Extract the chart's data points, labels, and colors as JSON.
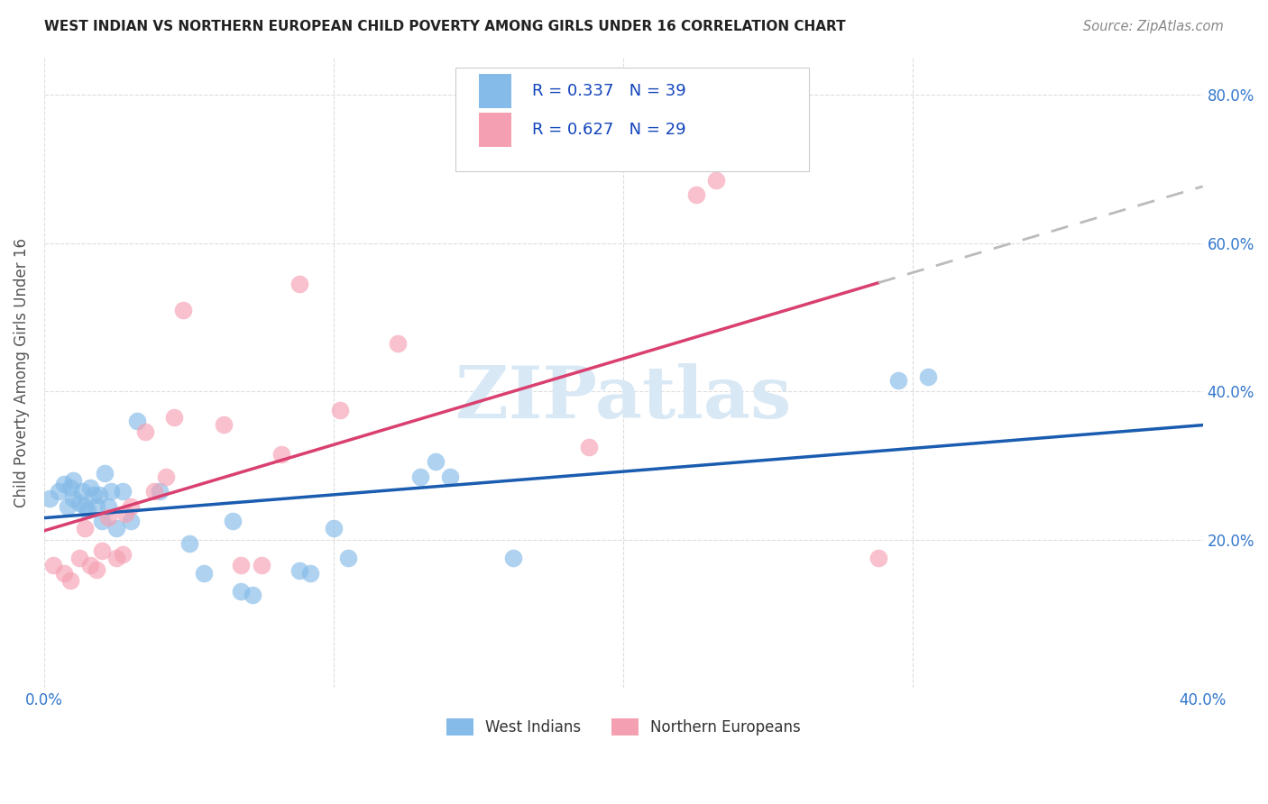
{
  "title": "WEST INDIAN VS NORTHERN EUROPEAN CHILD POVERTY AMONG GIRLS UNDER 16 CORRELATION CHART",
  "source": "Source: ZipAtlas.com",
  "ylabel": "Child Poverty Among Girls Under 16",
  "xlim": [
    0.0,
    0.4
  ],
  "ylim": [
    0.0,
    0.85
  ],
  "west_indians_x": [
    0.002,
    0.005,
    0.007,
    0.008,
    0.009,
    0.01,
    0.01,
    0.012,
    0.013,
    0.014,
    0.015,
    0.016,
    0.017,
    0.018,
    0.019,
    0.02,
    0.021,
    0.022,
    0.023,
    0.025,
    0.027,
    0.03,
    0.032,
    0.04,
    0.05,
    0.055,
    0.065,
    0.068,
    0.072,
    0.088,
    0.092,
    0.1,
    0.105,
    0.13,
    0.135,
    0.14,
    0.162,
    0.295,
    0.305
  ],
  "west_indians_y": [
    0.255,
    0.265,
    0.275,
    0.245,
    0.27,
    0.255,
    0.28,
    0.25,
    0.265,
    0.245,
    0.24,
    0.27,
    0.26,
    0.245,
    0.26,
    0.225,
    0.29,
    0.245,
    0.265,
    0.215,
    0.265,
    0.225,
    0.36,
    0.265,
    0.195,
    0.155,
    0.225,
    0.13,
    0.125,
    0.158,
    0.155,
    0.215,
    0.175,
    0.285,
    0.305,
    0.285,
    0.175,
    0.415,
    0.42
  ],
  "northern_europeans_x": [
    0.003,
    0.007,
    0.009,
    0.012,
    0.014,
    0.016,
    0.018,
    0.02,
    0.022,
    0.025,
    0.027,
    0.028,
    0.03,
    0.035,
    0.038,
    0.042,
    0.045,
    0.048,
    0.062,
    0.068,
    0.075,
    0.082,
    0.088,
    0.102,
    0.122,
    0.188,
    0.225,
    0.232,
    0.288
  ],
  "northern_europeans_y": [
    0.165,
    0.155,
    0.145,
    0.175,
    0.215,
    0.165,
    0.16,
    0.185,
    0.23,
    0.175,
    0.18,
    0.235,
    0.245,
    0.345,
    0.265,
    0.285,
    0.365,
    0.51,
    0.355,
    0.165,
    0.165,
    0.315,
    0.545,
    0.375,
    0.465,
    0.325,
    0.665,
    0.685,
    0.175
  ],
  "west_indians_R": 0.337,
  "west_indians_N": 39,
  "northern_europeans_R": 0.627,
  "northern_europeans_N": 29,
  "west_indians_color": "#85BBE8",
  "northern_europeans_color": "#F5A0B2",
  "west_indians_line_color": "#1A5CB0",
  "northern_europeans_line_color": "#D94070",
  "trendline_ext_color": "#BBBBBB",
  "watermark_text": "ZIPatlas",
  "watermark_color": "#D8E8F5",
  "background_color": "#FFFFFF",
  "grid_color": "#DDDDDD",
  "legend_text_color": "#1144BB",
  "tick_color": "#3377CC",
  "ylabel_color": "#555555",
  "title_color": "#222222",
  "source_color": "#888888"
}
